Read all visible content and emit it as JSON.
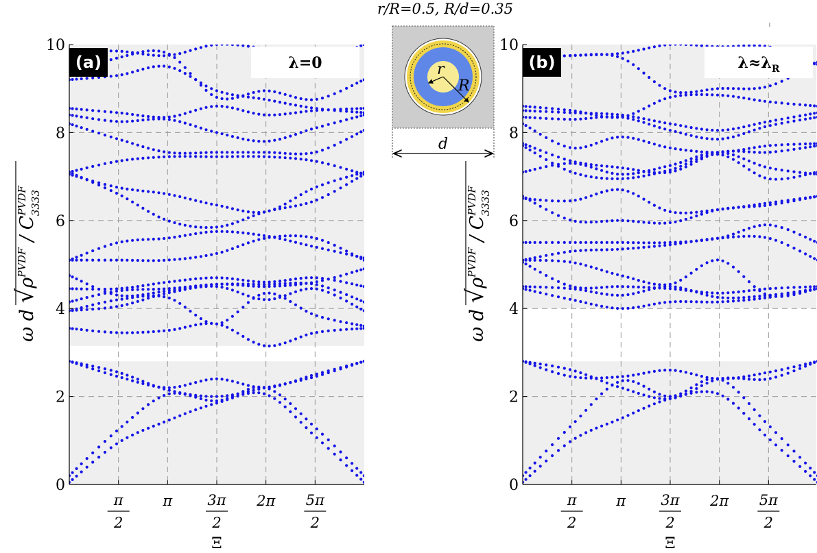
{
  "title": "r/R=0.5, R/d=0.35",
  "unit_cell": {
    "labels": {
      "inner_radius": "r",
      "outer_radius": "R",
      "width": "d"
    }
  },
  "colors": {
    "points": "#1515e6",
    "band_fill": "#efefef",
    "ring": "#f0d54a",
    "coating": "#5f87e8",
    "cell": "#cdcdcd"
  },
  "ylabel": "ω d √(ρ^PVDF / C_3333^PVDF)",
  "chart_data": [
    {
      "type": "scatter",
      "panel": "(a)",
      "legend": "λ=0",
      "xlabel": "Ξ",
      "xlim": [
        0,
        9.4248
      ],
      "ylim": [
        0,
        10
      ],
      "xticks": [
        {
          "value": 1.5708,
          "num": "π",
          "den": "2"
        },
        {
          "value": 3.1416,
          "num": "π",
          "den": ""
        },
        {
          "value": 4.7124,
          "num": "3π",
          "den": "2"
        },
        {
          "value": 6.2832,
          "num": "2π",
          "den": ""
        },
        {
          "value": 7.854,
          "num": "5π",
          "den": "2"
        }
      ],
      "yticks": [
        0,
        2,
        4,
        6,
        8,
        10
      ],
      "shaded_bands": [
        [
          0,
          2.8
        ],
        [
          3.15,
          10
        ]
      ],
      "branches": [
        {
          "x": [
            0,
            1.57,
            3.14,
            4.71,
            6.28,
            7.85,
            9.42
          ],
          "y": [
            0.05,
            0.95,
            1.45,
            1.85,
            2.05,
            1.1,
            0.05
          ]
        },
        {
          "x": [
            0,
            1.57,
            3.14,
            4.71,
            6.28,
            7.85,
            9.42
          ],
          "y": [
            0.2,
            1.25,
            2.05,
            1.9,
            2.2,
            1.3,
            0.2
          ]
        },
        {
          "x": [
            0,
            1.57,
            3.14,
            4.71,
            6.28,
            7.85,
            9.42
          ],
          "y": [
            2.8,
            2.55,
            2.15,
            2.0,
            2.2,
            2.45,
            2.8
          ]
        },
        {
          "x": [
            0,
            1.57,
            3.14,
            4.71,
            6.28,
            7.85,
            9.42
          ],
          "y": [
            2.8,
            2.45,
            2.2,
            2.4,
            2.2,
            2.5,
            2.8
          ]
        },
        {
          "x": [
            0,
            1.57,
            3.14,
            4.71,
            6.28,
            7.85,
            9.42
          ],
          "y": [
            3.55,
            3.45,
            3.5,
            3.65,
            3.15,
            3.45,
            3.55
          ]
        },
        {
          "x": [
            0,
            1.57,
            3.14,
            4.71,
            6.28,
            7.85,
            9.42
          ],
          "y": [
            3.95,
            4.2,
            4.25,
            3.65,
            4.35,
            3.85,
            3.6
          ]
        },
        {
          "x": [
            0,
            1.57,
            3.14,
            4.71,
            6.28,
            7.85,
            9.42
          ],
          "y": [
            3.95,
            4.05,
            4.35,
            4.5,
            4.2,
            4.45,
            3.95
          ]
        },
        {
          "x": [
            0,
            1.57,
            3.14,
            4.71,
            6.28,
            7.85,
            9.42
          ],
          "y": [
            4.15,
            4.4,
            4.45,
            4.55,
            4.55,
            4.55,
            4.15
          ]
        },
        {
          "x": [
            0,
            1.57,
            3.14,
            4.71,
            6.28,
            7.85,
            9.42
          ],
          "y": [
            4.45,
            4.45,
            4.6,
            4.7,
            4.6,
            4.7,
            4.5
          ]
        },
        {
          "x": [
            0,
            1.57,
            3.14,
            4.71,
            6.28,
            7.85,
            9.42
          ],
          "y": [
            4.75,
            4.3,
            4.4,
            4.55,
            4.5,
            4.6,
            4.9
          ]
        },
        {
          "x": [
            0,
            1.57,
            3.14,
            4.71,
            6.28,
            7.85,
            9.42
          ],
          "y": [
            5.1,
            5.1,
            5.1,
            5.25,
            5.6,
            5.6,
            5.1
          ]
        },
        {
          "x": [
            0,
            1.57,
            3.14,
            4.71,
            6.28,
            7.85,
            9.42
          ],
          "y": [
            5.1,
            5.5,
            5.6,
            5.75,
            5.65,
            5.4,
            5.15
          ]
        },
        {
          "x": [
            0,
            1.57,
            3.14,
            4.71,
            6.28,
            7.85,
            9.42
          ],
          "y": [
            7.1,
            6.6,
            6.0,
            5.85,
            6.2,
            6.45,
            7.05
          ]
        },
        {
          "x": [
            0,
            1.57,
            3.14,
            4.71,
            6.28,
            7.85,
            9.42
          ],
          "y": [
            7.05,
            6.75,
            6.6,
            6.35,
            6.2,
            6.75,
            7.1
          ]
        },
        {
          "x": [
            0,
            1.57,
            3.14,
            4.71,
            6.28,
            7.85,
            9.42
          ],
          "y": [
            7.1,
            7.35,
            7.45,
            7.45,
            7.45,
            7.35,
            7.05
          ]
        },
        {
          "x": [
            0,
            1.57,
            3.14,
            4.71,
            6.28,
            7.85,
            9.42
          ],
          "y": [
            8.2,
            7.85,
            7.55,
            7.55,
            7.55,
            7.55,
            8.05
          ]
        },
        {
          "x": [
            0,
            1.57,
            3.14,
            4.71,
            6.28,
            7.85,
            9.42
          ],
          "y": [
            8.4,
            8.25,
            8.3,
            8.0,
            7.8,
            8.1,
            8.4
          ]
        },
        {
          "x": [
            0,
            1.57,
            3.14,
            4.71,
            6.28,
            7.85,
            9.42
          ],
          "y": [
            8.55,
            8.45,
            8.35,
            8.6,
            8.4,
            8.5,
            8.55
          ]
        },
        {
          "x": [
            0,
            1.57,
            3.14,
            4.71,
            6.28,
            7.85,
            9.42
          ],
          "y": [
            9.2,
            9.3,
            9.5,
            8.95,
            8.75,
            8.55,
            8.45
          ]
        },
        {
          "x": [
            0,
            1.57,
            3.14,
            4.71,
            6.28,
            7.85,
            9.42
          ],
          "y": [
            9.3,
            9.7,
            9.8,
            8.8,
            8.95,
            8.75,
            9.2
          ]
        },
        {
          "x": [
            0,
            1.57,
            3.14,
            4.71,
            6.28,
            7.85,
            9.42
          ],
          "y": [
            9.85,
            9.85,
            9.75,
            10.0,
            9.9,
            9.65,
            10.0
          ]
        }
      ]
    },
    {
      "type": "scatter",
      "panel": "(b)",
      "legend": "λ≈λR",
      "xlabel": "Ξ",
      "xlim": [
        0,
        9.4248
      ],
      "ylim": [
        0,
        10
      ],
      "xticks": [
        {
          "value": 1.5708,
          "num": "π",
          "den": "2"
        },
        {
          "value": 3.1416,
          "num": "π",
          "den": ""
        },
        {
          "value": 4.7124,
          "num": "3π",
          "den": "2"
        },
        {
          "value": 6.2832,
          "num": "2π",
          "den": ""
        },
        {
          "value": 7.854,
          "num": "5π",
          "den": "2"
        }
      ],
      "yticks": [
        0,
        2,
        4,
        6,
        8,
        10
      ],
      "shaded_bands": [
        [
          0,
          2.8
        ],
        [
          4.0,
          10
        ]
      ],
      "branches": [
        {
          "x": [
            0,
            1.57,
            3.14,
            4.71,
            6.28,
            7.85,
            9.42
          ],
          "y": [
            0.05,
            1.0,
            1.5,
            1.95,
            2.05,
            1.05,
            0.05
          ]
        },
        {
          "x": [
            0,
            1.57,
            3.14,
            4.71,
            6.28,
            7.85,
            9.42
          ],
          "y": [
            0.2,
            1.35,
            2.35,
            2.0,
            2.4,
            1.35,
            0.2
          ]
        },
        {
          "x": [
            0,
            1.57,
            3.14,
            4.71,
            6.28,
            7.85,
            9.42
          ],
          "y": [
            2.8,
            2.6,
            2.2,
            1.95,
            2.4,
            2.4,
            2.8
          ]
        },
        {
          "x": [
            0,
            1.57,
            3.14,
            4.71,
            6.28,
            7.85,
            9.42
          ],
          "y": [
            2.8,
            2.45,
            2.45,
            2.6,
            2.4,
            2.55,
            2.8
          ]
        },
        {
          "x": [
            0,
            1.57,
            3.14,
            4.71,
            6.28,
            7.85,
            9.42
          ],
          "y": [
            4.45,
            4.2,
            4.0,
            4.15,
            4.15,
            4.25,
            4.45
          ]
        },
        {
          "x": [
            0,
            1.57,
            3.14,
            4.71,
            6.28,
            7.85,
            9.42
          ],
          "y": [
            4.5,
            4.45,
            4.3,
            4.5,
            4.25,
            4.3,
            4.45
          ]
        },
        {
          "x": [
            0,
            1.57,
            3.14,
            4.71,
            6.28,
            7.85,
            9.42
          ],
          "y": [
            5.05,
            4.5,
            4.5,
            4.45,
            4.35,
            4.45,
            4.5
          ]
        },
        {
          "x": [
            0,
            1.57,
            3.14,
            4.71,
            6.28,
            7.85,
            9.42
          ],
          "y": [
            5.1,
            5.05,
            4.75,
            4.55,
            5.1,
            4.3,
            4.45
          ]
        },
        {
          "x": [
            0,
            1.57,
            3.14,
            4.71,
            6.28,
            7.85,
            9.42
          ],
          "y": [
            5.1,
            5.3,
            5.35,
            5.45,
            5.6,
            5.6,
            5.1
          ]
        },
        {
          "x": [
            0,
            1.57,
            3.14,
            4.71,
            6.28,
            7.85,
            9.42
          ],
          "y": [
            5.5,
            5.5,
            5.5,
            5.5,
            5.6,
            5.9,
            5.5
          ]
        },
        {
          "x": [
            0,
            1.57,
            3.14,
            4.71,
            6.28,
            7.85,
            9.42
          ],
          "y": [
            6.55,
            6.0,
            6.0,
            5.95,
            6.25,
            6.35,
            6.55
          ]
        },
        {
          "x": [
            0,
            1.57,
            3.14,
            4.71,
            6.28,
            7.85,
            9.42
          ],
          "y": [
            6.5,
            6.45,
            6.7,
            6.2,
            6.25,
            6.4,
            6.55
          ]
        },
        {
          "x": [
            0,
            1.57,
            3.14,
            4.71,
            6.28,
            7.85,
            9.42
          ],
          "y": [
            7.1,
            7.3,
            7.05,
            7.25,
            7.55,
            7.2,
            7.05
          ]
        },
        {
          "x": [
            0,
            1.57,
            3.14,
            4.71,
            6.28,
            7.85,
            9.42
          ],
          "y": [
            7.7,
            7.1,
            6.95,
            7.15,
            7.5,
            6.95,
            7.1
          ]
        },
        {
          "x": [
            0,
            1.57,
            3.14,
            4.71,
            6.28,
            7.85,
            9.42
          ],
          "y": [
            7.75,
            7.35,
            7.2,
            7.1,
            7.55,
            7.55,
            7.7
          ]
        },
        {
          "x": [
            0,
            1.57,
            3.14,
            4.71,
            6.28,
            7.85,
            9.42
          ],
          "y": [
            8.2,
            7.65,
            7.9,
            7.65,
            7.55,
            7.7,
            7.75
          ]
        },
        {
          "x": [
            0,
            1.57,
            3.14,
            4.71,
            6.28,
            7.85,
            9.42
          ],
          "y": [
            8.35,
            8.3,
            8.35,
            8.05,
            7.85,
            8.15,
            8.35
          ]
        },
        {
          "x": [
            0,
            1.57,
            3.14,
            4.71,
            6.28,
            7.85,
            9.42
          ],
          "y": [
            8.5,
            8.45,
            8.4,
            8.2,
            8.05,
            8.25,
            8.45
          ]
        },
        {
          "x": [
            0,
            1.57,
            3.14,
            4.71,
            6.28,
            7.85,
            9.42
          ],
          "y": [
            8.6,
            8.5,
            8.35,
            8.8,
            8.85,
            8.7,
            8.6
          ]
        },
        {
          "x": [
            0,
            1.57,
            3.14,
            4.71,
            6.28,
            7.85,
            9.42
          ],
          "y": [
            9.65,
            9.75,
            9.7,
            8.95,
            9.0,
            9.05,
            9.6
          ]
        },
        {
          "x": [
            0,
            1.57,
            3.14,
            4.71,
            6.28,
            7.85,
            9.42
          ],
          "y": [
            9.7,
            9.75,
            9.8,
            10.0,
            9.95,
            9.95,
            9.55
          ]
        }
      ]
    }
  ]
}
